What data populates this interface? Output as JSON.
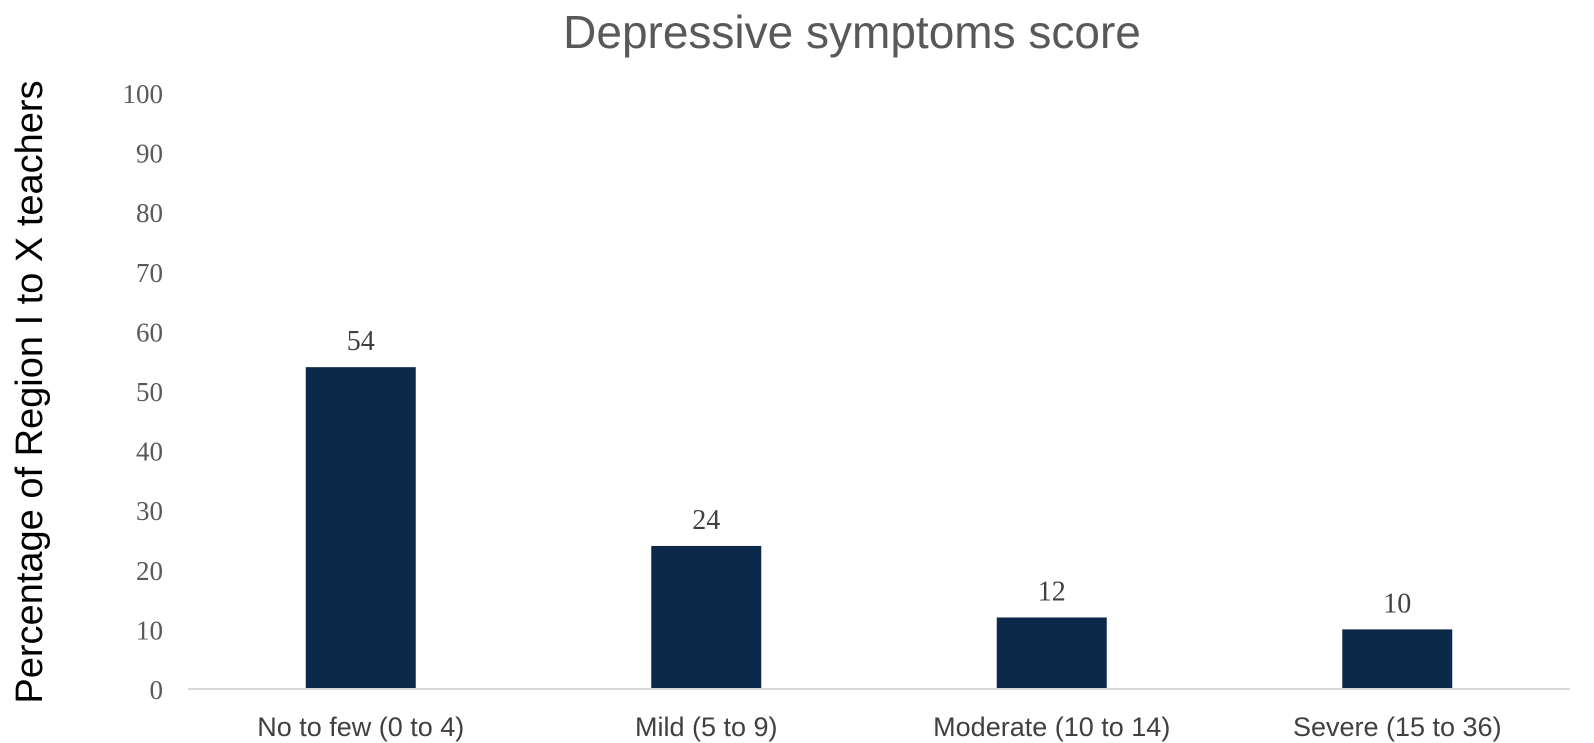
{
  "chart_data": {
    "type": "bar",
    "title": "Depressive symptoms score",
    "xlabel": "",
    "ylabel": "Percentage of Region I to X teachers",
    "categories": [
      "No to few (0 to 4)",
      "Mild (5 to 9)",
      "Moderate (10 to 14)",
      "Severe (15 to 36)"
    ],
    "values": [
      54,
      24,
      12,
      10
    ],
    "data_labels": [
      "54",
      "24",
      "12",
      "10"
    ],
    "ylim": [
      0,
      100
    ],
    "yticks": [
      "0",
      "10",
      "20",
      "30",
      "40",
      "50",
      "60",
      "70",
      "80",
      "90",
      "100"
    ],
    "grid": false,
    "legend": "none",
    "bar_color": "#0d2949",
    "axis_color": "#d9d9d9"
  }
}
